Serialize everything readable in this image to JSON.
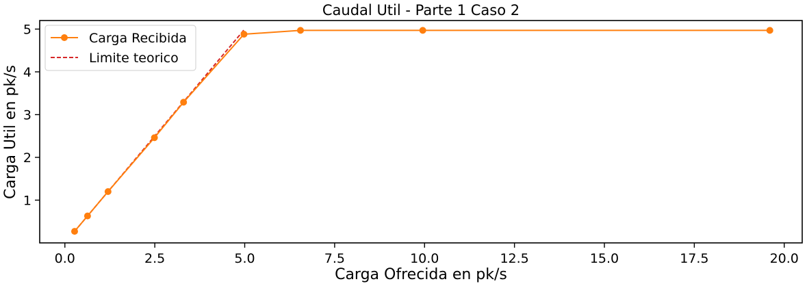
{
  "chart_data": {
    "type": "line",
    "title": "Caudal Util - Parte 1 Caso 2",
    "xlabel": "Carga Ofrecida en pk/s",
    "ylabel": "Carga Util en pk/s",
    "xlim": [
      -0.7,
      20.5
    ],
    "ylim": [
      0.0,
      5.2
    ],
    "xticks": [
      0.0,
      2.5,
      5.0,
      7.5,
      10.0,
      12.5,
      15.0,
      17.5,
      20.0
    ],
    "xtick_labels": [
      "0.0",
      "2.5",
      "5.0",
      "7.5",
      "10.0",
      "12.5",
      "15.0",
      "17.5",
      "20.0"
    ],
    "yticks": [
      1,
      2,
      3,
      4,
      5
    ],
    "ytick_labels": [
      "1",
      "2",
      "3",
      "4",
      "5"
    ],
    "grid": false,
    "legend_position": "top-left",
    "series": [
      {
        "name": "Carga Recibida",
        "style": "solid-marker",
        "color": "#ff7f0e",
        "x": [
          0.27,
          0.63,
          1.2,
          2.49,
          3.3,
          4.98,
          6.55,
          9.95,
          19.6
        ],
        "y": [
          0.27,
          0.63,
          1.2,
          2.46,
          3.29,
          4.88,
          4.97,
          4.97,
          4.97
        ]
      },
      {
        "name": "Limite teorico",
        "style": "dashed",
        "color": "#d62728",
        "x": [
          0.27,
          4.98
        ],
        "y": [
          0.27,
          4.98
        ]
      }
    ]
  }
}
